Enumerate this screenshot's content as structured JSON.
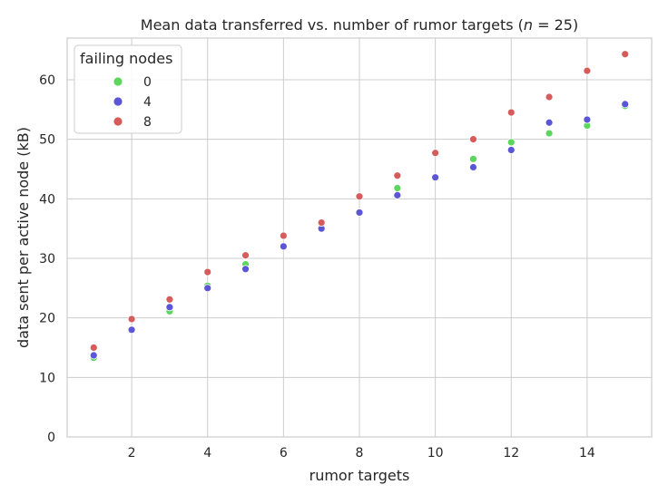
{
  "chart_data": {
    "type": "scatter",
    "title": "Mean data transferred vs. number of rumor targets (n = 25)",
    "xlabel": "rumor targets",
    "ylabel": "data sent per active node (kB)",
    "xlim": [
      0.3,
      15.7
    ],
    "ylim": [
      0,
      67
    ],
    "xticks": [
      "2",
      "4",
      "6",
      "8",
      "10",
      "12",
      "14"
    ],
    "yticks": [
      "0",
      "10",
      "20",
      "30",
      "40",
      "50",
      "60"
    ],
    "grid": true,
    "legend": {
      "title": "failing nodes",
      "placement": "top-left"
    },
    "series": [
      {
        "name": "0",
        "color": "#5cd65c",
        "x": [
          1,
          2,
          3,
          4,
          5,
          6,
          7,
          8,
          9,
          10,
          11,
          12,
          13,
          14,
          15
        ],
        "y": [
          13.3,
          18.0,
          21.1,
          25.4,
          29.0,
          32.0,
          35.2,
          37.7,
          41.8,
          43.6,
          46.7,
          49.5,
          51.0,
          52.3,
          55.6
        ]
      },
      {
        "name": "4",
        "color": "#5b56d6",
        "x": [
          1,
          2,
          3,
          4,
          5,
          6,
          7,
          8,
          9,
          10,
          11,
          12,
          13,
          14,
          15
        ],
        "y": [
          13.7,
          18.0,
          21.8,
          25.0,
          28.2,
          32.0,
          35.0,
          37.7,
          40.6,
          43.6,
          45.3,
          48.2,
          52.8,
          53.3,
          55.9
        ]
      },
      {
        "name": "8",
        "color": "#d65b5b",
        "x": [
          1,
          2,
          3,
          4,
          5,
          6,
          7,
          8,
          9,
          10,
          11,
          12,
          13,
          14,
          15
        ],
        "y": [
          15.0,
          19.8,
          23.1,
          27.7,
          30.5,
          33.8,
          36.0,
          40.4,
          43.9,
          47.7,
          50.0,
          54.5,
          57.1,
          61.5,
          64.3
        ]
      }
    ]
  }
}
